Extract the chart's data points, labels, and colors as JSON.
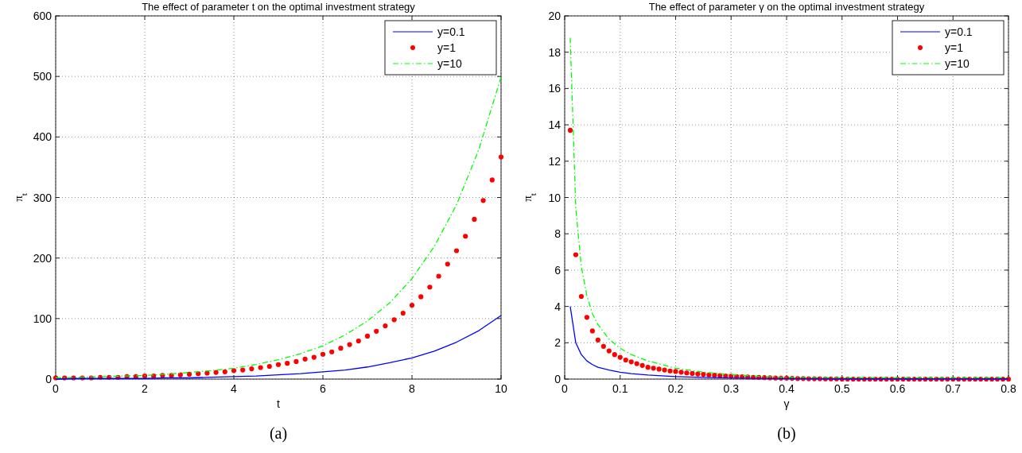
{
  "chart_data": [
    {
      "type": "line",
      "title": "The effect of parameter t on the optimal investment strategy",
      "xlabel": "t",
      "ylabel": "π$_{t}$",
      "xlim": [
        0,
        10
      ],
      "ylim": [
        0,
        600
      ],
      "xticks": [
        0,
        2,
        4,
        6,
        8,
        10
      ],
      "yticks": [
        0,
        100,
        200,
        300,
        400,
        500,
        600
      ],
      "grid": true,
      "legend": "top right",
      "annotations": [
        "(a)"
      ],
      "series": [
        {
          "name": "y=0.1",
          "color": "#0000ff",
          "line_style": "solid",
          "marker": "none",
          "x": [
            0,
            0.5,
            1,
            1.5,
            2,
            2.5,
            3,
            3.5,
            4,
            4.5,
            5,
            5.5,
            6,
            6.5,
            7,
            7.5,
            8,
            8.5,
            9,
            9.5,
            10
          ],
          "values": [
            0,
            1,
            1,
            1,
            1,
            2,
            2,
            3,
            4,
            5,
            7,
            9,
            12,
            15,
            20,
            27,
            35,
            46,
            61,
            80,
            105
          ]
        },
        {
          "name": "y=1",
          "color": "#ff0000",
          "type": "scatter",
          "marker": "circle",
          "x": [
            0,
            0.2,
            0.4,
            0.6,
            0.8,
            1,
            1.2,
            1.4,
            1.6,
            1.8,
            2,
            2.2,
            2.4,
            2.6,
            2.8,
            3,
            3.2,
            3.4,
            3.6,
            3.8,
            4,
            4.2,
            4.4,
            4.6,
            4.8,
            5,
            5.2,
            5.4,
            5.6,
            5.8,
            6,
            6.2,
            6.4,
            6.6,
            6.8,
            7,
            7.2,
            7.4,
            7.6,
            7.8,
            8,
            8.2,
            8.4,
            8.6,
            8.8,
            9,
            9.2,
            9.4,
            9.6,
            9.8,
            10
          ],
          "values": [
            2,
            2,
            2,
            2,
            2,
            3,
            3,
            3,
            4,
            4,
            5,
            5,
            6,
            6,
            7,
            8,
            9,
            10,
            11,
            12,
            14,
            15,
            17,
            19,
            21,
            24,
            26,
            29,
            33,
            36,
            41,
            45,
            51,
            57,
            63,
            71,
            79,
            88,
            98,
            109,
            122,
            136,
            152,
            170,
            190,
            212,
            236,
            264,
            295,
            329,
            367
          ]
        },
        {
          "name": "y=10",
          "color": "#00ff00",
          "line_style": "dashed",
          "marker": "none",
          "x": [
            0,
            0.5,
            1,
            1.5,
            2,
            2.5,
            3,
            3.5,
            4,
            4.5,
            5,
            5.5,
            6,
            6.5,
            7,
            7.5,
            8,
            8.5,
            9,
            9.5,
            10
          ],
          "values": [
            2,
            3,
            4,
            5,
            6,
            8,
            11,
            14,
            18,
            24,
            32,
            42,
            55,
            73,
            96,
            126,
            166,
            219,
            288,
            379,
            499
          ]
        }
      ]
    },
    {
      "type": "line",
      "title": "The effect of parameter γ on the optimal investment strategy",
      "xlabel": "γ",
      "ylabel": "π$_{t}$",
      "xlim": [
        0,
        0.8
      ],
      "ylim": [
        0,
        20
      ],
      "xticks": [
        0,
        0.1,
        0.2,
        0.3,
        0.4,
        0.5,
        0.6,
        0.7,
        0.8
      ],
      "yticks": [
        0,
        2,
        4,
        6,
        8,
        10,
        12,
        14,
        16,
        18,
        20
      ],
      "grid": true,
      "legend": "top right",
      "annotations": [
        "(b)"
      ],
      "series": [
        {
          "name": "y=0.1",
          "color": "#0000ff",
          "line_style": "solid",
          "marker": "none",
          "x": [
            0.01,
            0.02,
            0.03,
            0.04,
            0.05,
            0.06,
            0.08,
            0.1,
            0.12,
            0.15,
            0.2,
            0.25,
            0.3,
            0.35,
            0.4,
            0.5,
            0.6,
            0.7,
            0.8
          ],
          "values": [
            4,
            2,
            1.35,
            1,
            0.8,
            0.65,
            0.5,
            0.38,
            0.3,
            0.22,
            0.14,
            0.09,
            0.06,
            0.04,
            0.03,
            0.01,
            0.01,
            0.01,
            0.01
          ]
        },
        {
          "name": "y=1",
          "color": "#ff0000",
          "type": "scatter",
          "marker": "circle",
          "x": [
            0.01,
            0.02,
            0.03,
            0.04,
            0.05,
            0.06,
            0.07,
            0.08,
            0.09,
            0.1,
            0.11,
            0.12,
            0.13,
            0.14,
            0.15,
            0.16,
            0.17,
            0.18,
            0.19,
            0.2,
            0.21,
            0.22,
            0.23,
            0.24,
            0.25,
            0.26,
            0.27,
            0.28,
            0.29,
            0.3,
            0.31,
            0.32,
            0.33,
            0.34,
            0.35,
            0.36,
            0.37,
            0.38,
            0.39,
            0.4,
            0.41,
            0.42,
            0.43,
            0.44,
            0.45,
            0.46,
            0.47,
            0.48,
            0.49,
            0.5,
            0.51,
            0.52,
            0.53,
            0.54,
            0.55,
            0.56,
            0.57,
            0.58,
            0.59,
            0.6,
            0.61,
            0.62,
            0.63,
            0.64,
            0.65,
            0.66,
            0.67,
            0.68,
            0.69,
            0.7,
            0.71,
            0.72,
            0.73,
            0.74,
            0.75,
            0.76,
            0.77,
            0.78,
            0.79,
            0.8
          ],
          "values": [
            13.7,
            6.85,
            4.55,
            3.4,
            2.65,
            2.15,
            1.8,
            1.55,
            1.35,
            1.2,
            1.05,
            0.95,
            0.85,
            0.75,
            0.65,
            0.6,
            0.55,
            0.5,
            0.45,
            0.42,
            0.38,
            0.34,
            0.31,
            0.28,
            0.26,
            0.23,
            0.21,
            0.19,
            0.17,
            0.16,
            0.14,
            0.13,
            0.12,
            0.1,
            0.09,
            0.08,
            0.07,
            0.06,
            0.05,
            0.05,
            0.04,
            0.03,
            0.03,
            0.02,
            0.02,
            0.02,
            0.01,
            0.01,
            0.01,
            0,
            0,
            0,
            0,
            0,
            0,
            0,
            0,
            0,
            0,
            0,
            0,
            0,
            0,
            0,
            0,
            0,
            0,
            0,
            0,
            0,
            0,
            0,
            0,
            0,
            0,
            0,
            0,
            0,
            0,
            0
          ]
        },
        {
          "name": "y=10",
          "color": "#00ff00",
          "line_style": "dashed",
          "marker": "none",
          "x": [
            0.01,
            0.02,
            0.03,
            0.04,
            0.05,
            0.06,
            0.08,
            0.1,
            0.12,
            0.15,
            0.2,
            0.25,
            0.3,
            0.35,
            0.4,
            0.5,
            0.6,
            0.7,
            0.8
          ],
          "values": [
            18.8,
            9.4,
            6.2,
            4.6,
            3.6,
            3,
            2.2,
            1.7,
            1.35,
            1,
            0.6,
            0.38,
            0.25,
            0.15,
            0.1,
            0.07,
            0.07,
            0.07,
            0.07
          ]
        }
      ]
    }
  ]
}
